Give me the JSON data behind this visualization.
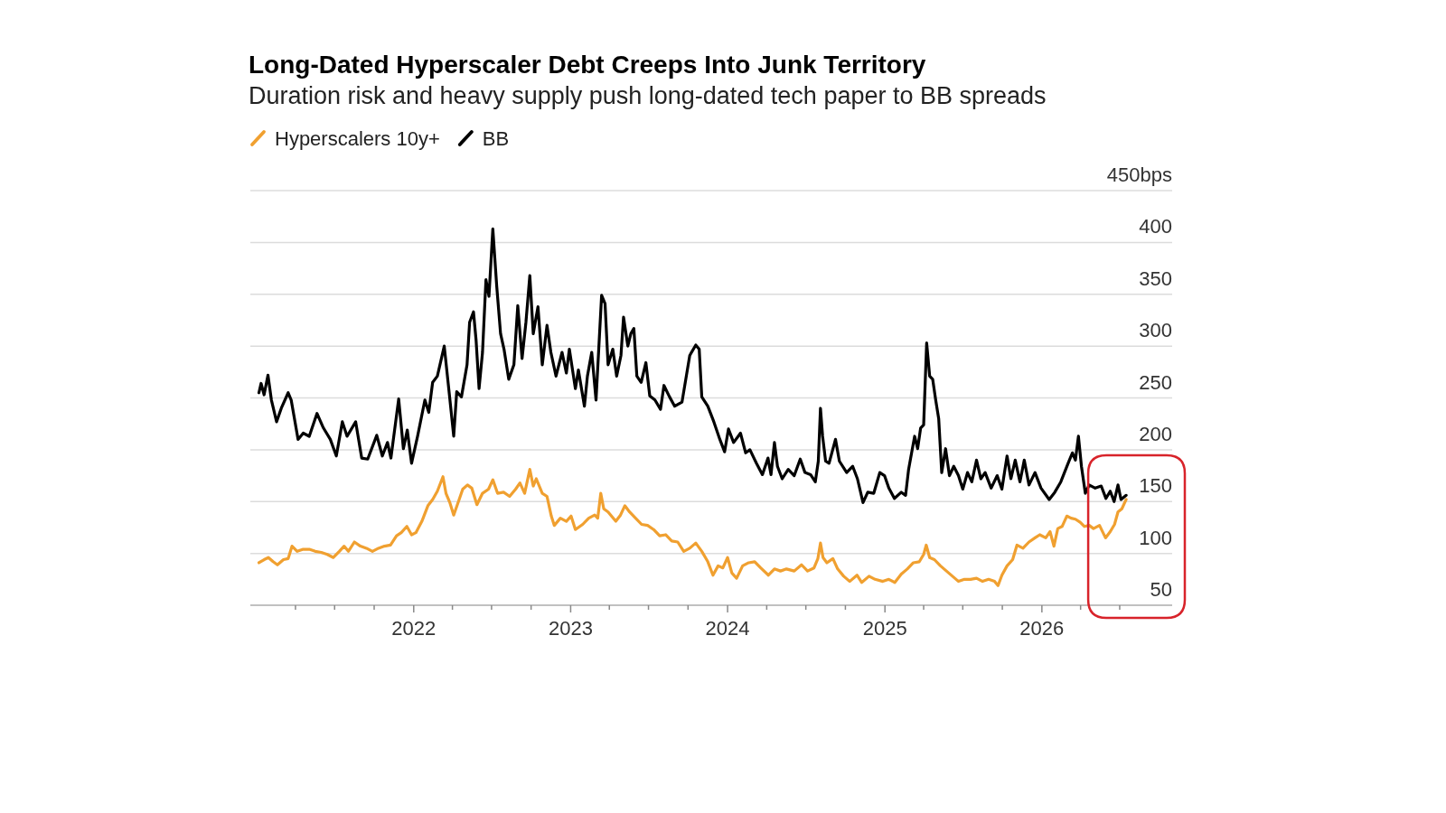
{
  "chart_data": {
    "type": "line",
    "title": "Long-Dated Hyperscaler Debt Creeps Into Junk Territory",
    "subtitle": "Duration risk and heavy supply push long-dated tech paper to BB spreads",
    "legend": "top left",
    "grid": "y",
    "xlim": [
      "2020-12-17",
      "2026-10-31"
    ],
    "xticks": [
      {
        "value": "2021-04-01",
        "label": null
      },
      {
        "value": "2021-07-01",
        "label": null
      },
      {
        "value": "2021-10-01",
        "label": null
      },
      {
        "value": "2022-01-01",
        "label": "2022"
      },
      {
        "value": "2022-04-01",
        "label": null
      },
      {
        "value": "2022-07-01",
        "label": null
      },
      {
        "value": "2022-10-01",
        "label": null
      },
      {
        "value": "2023-01-01",
        "label": "2023"
      },
      {
        "value": "2023-04-01",
        "label": null
      },
      {
        "value": "2023-07-01",
        "label": null
      },
      {
        "value": "2023-10-01",
        "label": null
      },
      {
        "value": "2024-01-01",
        "label": "2024"
      },
      {
        "value": "2024-04-01",
        "label": null
      },
      {
        "value": "2024-07-01",
        "label": null
      },
      {
        "value": "2024-10-01",
        "label": null
      },
      {
        "value": "2025-01-01",
        "label": "2025"
      },
      {
        "value": "2025-04-01",
        "label": null
      },
      {
        "value": "2025-07-01",
        "label": null
      },
      {
        "value": "2025-10-01",
        "label": null
      },
      {
        "value": "2026-01-01",
        "label": "2026"
      },
      {
        "value": "2026-04-01",
        "label": null
      },
      {
        "value": "2026-07-01",
        "label": null
      }
    ],
    "ylim": [
      50,
      450
    ],
    "yticks": [
      50,
      100,
      150,
      200,
      250,
      300,
      350,
      400,
      {
        "value": 450,
        "label": "450bps"
      }
    ],
    "series": [
      {
        "name": "Hyperscalers 10y+",
        "color": "#f0a030",
        "x": [
          "2021-01-06",
          "2021-01-18",
          "2021-01-28",
          "2021-02-08",
          "2021-02-18",
          "2021-03-04",
          "2021-03-15",
          "2021-03-24",
          "2021-04-05",
          "2021-04-19",
          "2021-05-03",
          "2021-05-17",
          "2021-05-31",
          "2021-06-14",
          "2021-06-28",
          "2021-07-12",
          "2021-07-23",
          "2021-08-02",
          "2021-08-16",
          "2021-08-30",
          "2021-09-13",
          "2021-09-27",
          "2021-10-11",
          "2021-10-25",
          "2021-11-08",
          "2021-11-22",
          "2021-12-03",
          "2021-12-16",
          "2021-12-27",
          "2022-01-06",
          "2022-01-20",
          "2022-02-03",
          "2022-02-14",
          "2022-02-25",
          "2022-03-10",
          "2022-03-17",
          "2022-03-26",
          "2022-04-04",
          "2022-04-15",
          "2022-04-25",
          "2022-05-06",
          "2022-05-16",
          "2022-05-28",
          "2022-06-10",
          "2022-06-24",
          "2022-07-04",
          "2022-07-15",
          "2022-07-29",
          "2022-08-12",
          "2022-08-26",
          "2022-09-05",
          "2022-09-16",
          "2022-09-28",
          "2022-10-06",
          "2022-10-13",
          "2022-10-27",
          "2022-11-07",
          "2022-11-17",
          "2022-11-24",
          "2022-12-08",
          "2022-12-22",
          "2023-01-02",
          "2023-01-12",
          "2023-01-29",
          "2023-02-12",
          "2023-02-26",
          "2023-03-05",
          "2023-03-12",
          "2023-03-19",
          "2023-03-29",
          "2023-04-16",
          "2023-04-27",
          "2023-05-07",
          "2023-05-18",
          "2023-06-01",
          "2023-06-15",
          "2023-06-29",
          "2023-07-13",
          "2023-07-27",
          "2023-08-10",
          "2023-08-24",
          "2023-09-07",
          "2023-09-21",
          "2023-10-05",
          "2023-10-19",
          "2023-11-02",
          "2023-11-16",
          "2023-11-28",
          "2023-12-10",
          "2023-12-21",
          "2024-01-01",
          "2024-01-11",
          "2024-01-22",
          "2024-02-05",
          "2024-02-19",
          "2024-03-04",
          "2024-03-18",
          "2024-04-05",
          "2024-04-19",
          "2024-05-03",
          "2024-05-17",
          "2024-06-04",
          "2024-06-21",
          "2024-07-05",
          "2024-07-20",
          "2024-07-29",
          "2024-08-04",
          "2024-08-10",
          "2024-08-19",
          "2024-09-02",
          "2024-09-13",
          "2024-09-27",
          "2024-10-11",
          "2024-10-28",
          "2024-11-08",
          "2024-11-25",
          "2024-12-09",
          "2024-12-27",
          "2025-01-10",
          "2025-01-24",
          "2025-02-08",
          "2025-02-22",
          "2025-03-08",
          "2025-03-22",
          "2025-04-01",
          "2025-04-07",
          "2025-04-15",
          "2025-04-26",
          "2025-05-10",
          "2025-05-24",
          "2025-06-07",
          "2025-06-21",
          "2025-07-05",
          "2025-07-19",
          "2025-08-02",
          "2025-08-16",
          "2025-08-30",
          "2025-09-13",
          "2025-09-21",
          "2025-09-30",
          "2025-10-12",
          "2025-10-25",
          "2025-11-04",
          "2025-11-18",
          "2025-12-02",
          "2025-12-16",
          "2025-12-27",
          "2026-01-10",
          "2026-01-20",
          "2026-01-29",
          "2026-02-07",
          "2026-02-17",
          "2026-02-28",
          "2026-03-10",
          "2026-03-20",
          "2026-03-31",
          "2026-04-10",
          "2026-04-21",
          "2026-05-01",
          "2026-05-15",
          "2026-05-29",
          "2026-06-09",
          "2026-06-19",
          "2026-06-27",
          "2026-07-06",
          "2026-07-16"
        ],
        "values": [
          91,
          94,
          96,
          92,
          89,
          94,
          95,
          107,
          102,
          104,
          104,
          102,
          101,
          99,
          96,
          102,
          107,
          102,
          111,
          107,
          105,
          102,
          105,
          107,
          108,
          117,
          120,
          126,
          118,
          120,
          131,
          146,
          152,
          160,
          174,
          158,
          149,
          137,
          150,
          162,
          166,
          163,
          147,
          158,
          162,
          171,
          158,
          159,
          155,
          162,
          168,
          158,
          181,
          165,
          172,
          158,
          155,
          136,
          127,
          134,
          131,
          136,
          123,
          128,
          134,
          137,
          134,
          158,
          143,
          140,
          131,
          137,
          146,
          140,
          134,
          128,
          127,
          123,
          117,
          118,
          112,
          111,
          102,
          105,
          110,
          102,
          92,
          79,
          88,
          86,
          96,
          81,
          76,
          88,
          91,
          92,
          86,
          79,
          85,
          83,
          85,
          83,
          89,
          83,
          86,
          95,
          110,
          96,
          91,
          95,
          85,
          78,
          73,
          79,
          72,
          78,
          75,
          73,
          75,
          72,
          80,
          85,
          91,
          92,
          99,
          108,
          96,
          94,
          88,
          83,
          78,
          73,
          75,
          75,
          76,
          73,
          75,
          73,
          69,
          79,
          88,
          94,
          108,
          105,
          111,
          115,
          118,
          115,
          121,
          107,
          124,
          126,
          136,
          134,
          133,
          130,
          126,
          127,
          124,
          127,
          115,
          121,
          128,
          140,
          143,
          152
        ]
      },
      {
        "name": "BB",
        "color": "#000000",
        "x": [
          "2021-01-06",
          "2021-01-11",
          "2021-01-18",
          "2021-01-27",
          "2021-02-04",
          "2021-02-16",
          "2021-02-27",
          "2021-03-15",
          "2021-03-22",
          "2021-04-07",
          "2021-04-19",
          "2021-05-03",
          "2021-05-21",
          "2021-06-05",
          "2021-06-21",
          "2021-07-05",
          "2021-07-19",
          "2021-07-30",
          "2021-08-19",
          "2021-09-02",
          "2021-09-16",
          "2021-10-07",
          "2021-10-20",
          "2021-11-01",
          "2021-11-09",
          "2021-11-27",
          "2021-12-08",
          "2021-12-17",
          "2021-12-27",
          "2022-01-10",
          "2022-01-27",
          "2022-02-05",
          "2022-02-14",
          "2022-02-25",
          "2022-03-13",
          "2022-03-25",
          "2022-04-04",
          "2022-04-11",
          "2022-04-22",
          "2022-05-05",
          "2022-05-11",
          "2022-05-20",
          "2022-05-26",
          "2022-06-02",
          "2022-06-10",
          "2022-06-18",
          "2022-06-25",
          "2022-07-04",
          "2022-07-13",
          "2022-07-22",
          "2022-07-30",
          "2022-08-10",
          "2022-08-22",
          "2022-08-31",
          "2022-09-10",
          "2022-09-19",
          "2022-09-28",
          "2022-10-06",
          "2022-10-17",
          "2022-10-27",
          "2022-11-07",
          "2022-11-16",
          "2022-11-28",
          "2022-12-12",
          "2022-12-22",
          "2022-12-29",
          "2023-01-12",
          "2023-01-19",
          "2023-02-02",
          "2023-02-09",
          "2023-02-19",
          "2023-03-01",
          "2023-03-14",
          "2023-03-22",
          "2023-03-29",
          "2023-04-09",
          "2023-04-18",
          "2023-04-28",
          "2023-05-04",
          "2023-05-14",
          "2023-05-21",
          "2023-05-28",
          "2023-06-04",
          "2023-06-14",
          "2023-06-25",
          "2023-07-04",
          "2023-07-16",
          "2023-07-29",
          "2023-08-06",
          "2023-08-19",
          "2023-08-31",
          "2023-09-17",
          "2023-10-05",
          "2023-10-19",
          "2023-10-27",
          "2023-11-02",
          "2023-11-16",
          "2023-11-30",
          "2023-12-14",
          "2023-12-25",
          "2024-01-03",
          "2024-01-15",
          "2024-01-31",
          "2024-02-12",
          "2024-02-22",
          "2024-03-08",
          "2024-03-22",
          "2024-04-04",
          "2024-04-11",
          "2024-04-19",
          "2024-04-26",
          "2024-05-07",
          "2024-05-21",
          "2024-06-04",
          "2024-06-18",
          "2024-06-29",
          "2024-07-12",
          "2024-07-23",
          "2024-07-30",
          "2024-08-04",
          "2024-08-09",
          "2024-08-16",
          "2024-08-24",
          "2024-09-08",
          "2024-09-17",
          "2024-10-04",
          "2024-10-18",
          "2024-10-29",
          "2024-11-11",
          "2024-11-22",
          "2024-12-06",
          "2024-12-20",
          "2024-12-31",
          "2025-01-10",
          "2025-01-23",
          "2025-02-08",
          "2025-02-18",
          "2025-02-25",
          "2025-03-11",
          "2025-03-18",
          "2025-03-25",
          "2025-04-01",
          "2025-04-08",
          "2025-04-15",
          "2025-04-22",
          "2025-04-29",
          "2025-05-06",
          "2025-05-13",
          "2025-05-22",
          "2025-05-31",
          "2025-06-10",
          "2025-06-21",
          "2025-07-01",
          "2025-07-12",
          "2025-07-22",
          "2025-08-02",
          "2025-08-12",
          "2025-08-22",
          "2025-09-05",
          "2025-09-19",
          "2025-09-30",
          "2025-10-12",
          "2025-10-21",
          "2025-10-31",
          "2025-11-11",
          "2025-11-21",
          "2025-12-02",
          "2025-12-16",
          "2025-12-30",
          "2026-01-18",
          "2026-01-31",
          "2026-02-14",
          "2026-03-03",
          "2026-03-13",
          "2026-03-20",
          "2026-03-27",
          "2026-04-03",
          "2026-04-12",
          "2026-04-21",
          "2026-05-05",
          "2026-05-19",
          "2026-05-30",
          "2026-06-09",
          "2026-06-18",
          "2026-06-27",
          "2026-07-04",
          "2026-07-16"
        ],
        "values": [
          255,
          264,
          253,
          272,
          248,
          227,
          240,
          255,
          248,
          210,
          216,
          213,
          235,
          221,
          210,
          194,
          227,
          213,
          227,
          192,
          191,
          214,
          194,
          207,
          192,
          249,
          201,
          219,
          187,
          213,
          248,
          236,
          265,
          271,
          300,
          253,
          213,
          256,
          251,
          282,
          323,
          333,
          306,
          259,
          294,
          364,
          348,
          413,
          358,
          312,
          297,
          268,
          282,
          339,
          288,
          323,
          368,
          312,
          338,
          282,
          320,
          294,
          271,
          294,
          274,
          297,
          259,
          277,
          242,
          271,
          294,
          248,
          349,
          341,
          282,
          297,
          271,
          291,
          328,
          300,
          312,
          317,
          271,
          265,
          284,
          252,
          248,
          239,
          262,
          251,
          242,
          246,
          291,
          301,
          297,
          251,
          242,
          227,
          210,
          198,
          220,
          207,
          216,
          197,
          200,
          187,
          176,
          192,
          176,
          207,
          184,
          172,
          181,
          175,
          191,
          178,
          176,
          169,
          189,
          240,
          213,
          189,
          187,
          210,
          189,
          178,
          184,
          172,
          149,
          159,
          158,
          178,
          175,
          163,
          153,
          159,
          156,
          181,
          213,
          201,
          221,
          224,
          303,
          271,
          268,
          248,
          230,
          178,
          201,
          175,
          184,
          175,
          162,
          178,
          169,
          190,
          172,
          178,
          163,
          175,
          162,
          194,
          172,
          190,
          169,
          190,
          166,
          178,
          163,
          152,
          159,
          169,
          187,
          197,
          190,
          213,
          184,
          158,
          166,
          163,
          165,
          153,
          160,
          150,
          166,
          152,
          156
        ]
      }
    ]
  }
}
